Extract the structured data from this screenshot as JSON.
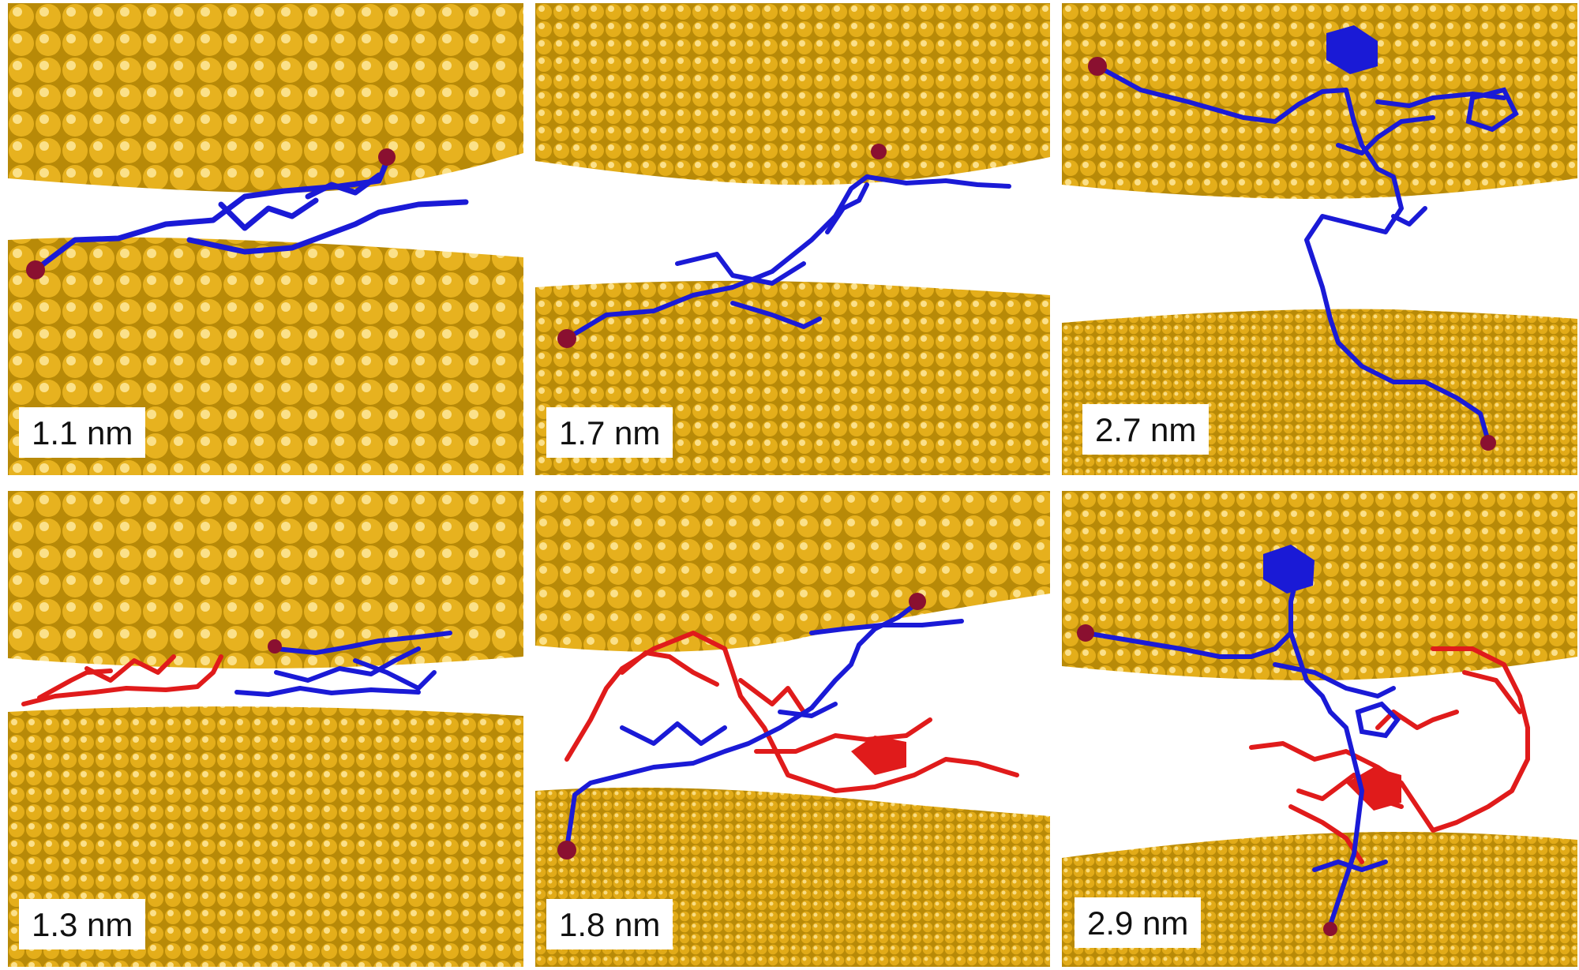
{
  "panels": [
    {
      "id": "p1",
      "label": "1.1 nm",
      "row": 0,
      "col": 0,
      "strands": [
        "blue"
      ]
    },
    {
      "id": "p2",
      "label": "1.7 nm",
      "row": 0,
      "col": 1,
      "strands": [
        "blue"
      ]
    },
    {
      "id": "p3",
      "label": "2.7 nm",
      "row": 0,
      "col": 2,
      "strands": [
        "blue"
      ]
    },
    {
      "id": "p4",
      "label": "1.3 nm",
      "row": 1,
      "col": 0,
      "strands": [
        "red",
        "blue"
      ]
    },
    {
      "id": "p5",
      "label": "1.8 nm",
      "row": 1,
      "col": 1,
      "strands": [
        "red",
        "blue"
      ]
    },
    {
      "id": "p6",
      "label": "2.9 nm",
      "row": 1,
      "col": 2,
      "strands": [
        "red",
        "blue"
      ]
    }
  ],
  "colors": {
    "gold_light": "#f2c94c",
    "gold_mid": "#d8a512",
    "gold_dark": "#7a5500",
    "strand_blue": "#1a1ad6",
    "strand_red": "#e01b1b",
    "end_atom": "#8a1030"
  }
}
